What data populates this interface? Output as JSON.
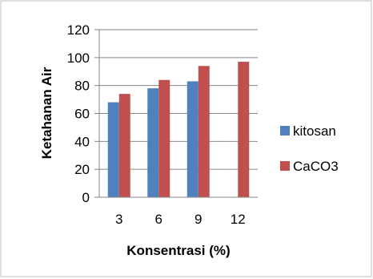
{
  "chart_data": {
    "type": "bar",
    "categories": [
      "3",
      "6",
      "9",
      "12"
    ],
    "series": [
      {
        "name": "kitosan",
        "values": [
          68,
          78,
          83,
          null
        ],
        "color": "#4f81bd"
      },
      {
        "name": "CaCO3",
        "values": [
          74,
          84,
          94,
          97
        ],
        "color": "#c0504d"
      }
    ],
    "xlabel": "Konsentrasi (%)",
    "ylabel": "Ketahanan Air",
    "ylim": [
      0,
      120
    ],
    "yticks": [
      0,
      20,
      40,
      60,
      80,
      100,
      120
    ],
    "grid": true,
    "legend_position": "right"
  }
}
